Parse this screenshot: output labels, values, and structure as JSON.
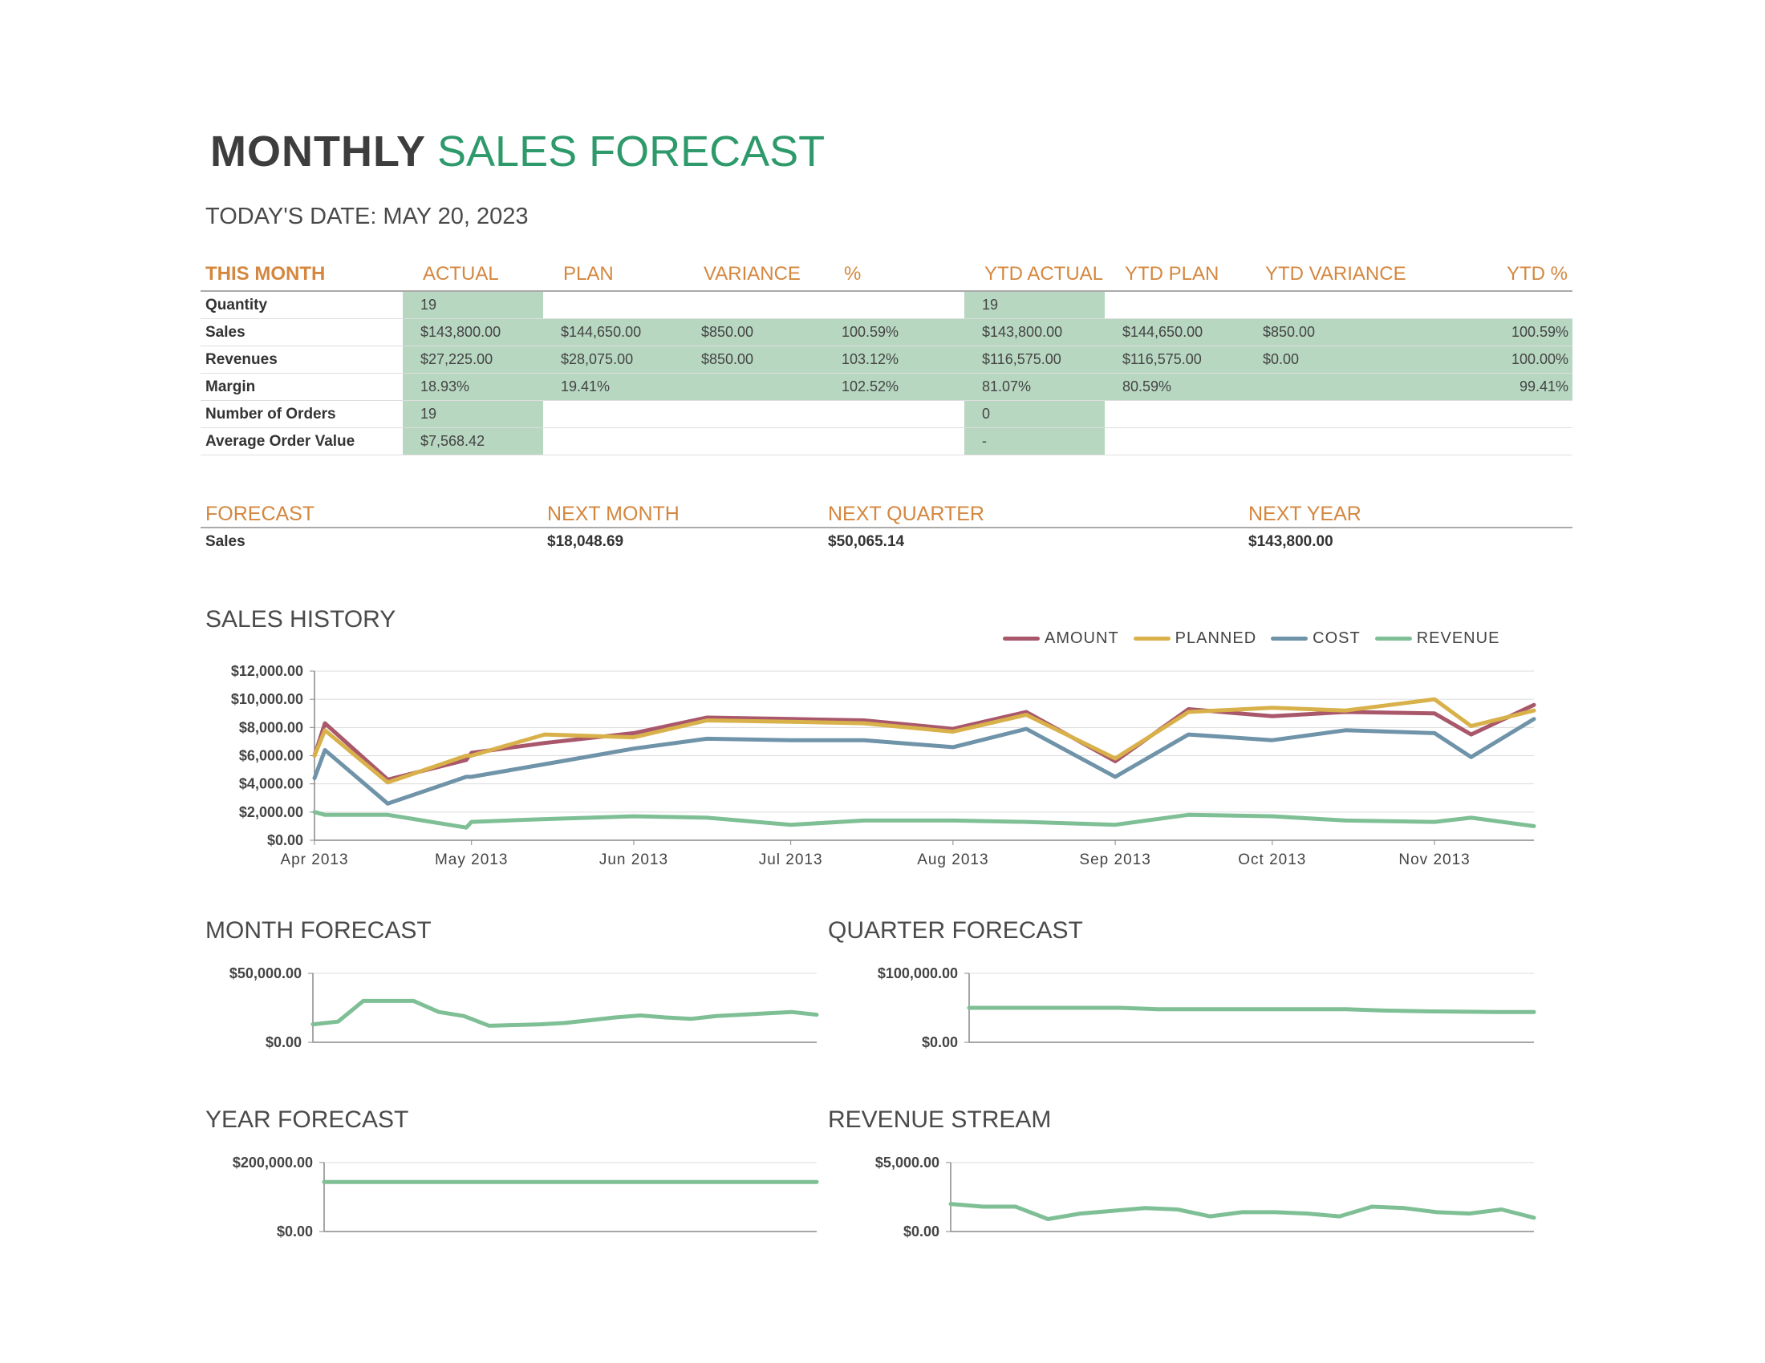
{
  "title": {
    "bold": "MONTHLY",
    "rest": "SALES FORECAST"
  },
  "date": {
    "label": "TODAY'S DATE:",
    "value": "MAY 20, 2023"
  },
  "this_month": {
    "headers": [
      "THIS MONTH",
      "ACTUAL",
      "PLAN",
      "VARIANCE",
      "%",
      "YTD ACTUAL",
      "YTD PLAN",
      "YTD VARIANCE",
      "YTD %"
    ],
    "rows": [
      {
        "label": "Quantity",
        "actual": "19",
        "plan": "",
        "variance": "",
        "pct": "",
        "ytd_actual": "19",
        "ytd_plan": "",
        "ytd_variance": "",
        "ytd_pct": ""
      },
      {
        "label": "Sales",
        "actual": "$143,800.00",
        "plan": "$144,650.00",
        "variance": "$850.00",
        "pct": "100.59%",
        "ytd_actual": "$143,800.00",
        "ytd_plan": "$144,650.00",
        "ytd_variance": "$850.00",
        "ytd_pct": "100.59%"
      },
      {
        "label": "Revenues",
        "actual": "$27,225.00",
        "plan": "$28,075.00",
        "variance": "$850.00",
        "pct": "103.12%",
        "ytd_actual": "$116,575.00",
        "ytd_plan": "$116,575.00",
        "ytd_variance": "$0.00",
        "ytd_pct": "100.00%"
      },
      {
        "label": "Margin",
        "actual": "18.93%",
        "plan": "19.41%",
        "variance": "",
        "pct": "102.52%",
        "ytd_actual": "81.07%",
        "ytd_plan": "80.59%",
        "ytd_variance": "",
        "ytd_pct": "99.41%"
      },
      {
        "label": "Number of Orders",
        "actual": "19",
        "plan": "",
        "variance": "",
        "pct": "",
        "ytd_actual": "0",
        "ytd_plan": "",
        "ytd_variance": "",
        "ytd_pct": ""
      },
      {
        "label": "Average Order Value",
        "actual": "$7,568.42",
        "plan": "",
        "variance": "",
        "pct": "",
        "ytd_actual": "-",
        "ytd_plan": "",
        "ytd_variance": "",
        "ytd_pct": ""
      }
    ]
  },
  "forecast": {
    "headers": [
      "FORECAST",
      "NEXT MONTH",
      "NEXT QUARTER",
      "NEXT YEAR"
    ],
    "row": {
      "label": "Sales",
      "next_month": "$18,048.69",
      "next_quarter": "$50,065.14",
      "next_year": "$143,800.00"
    }
  },
  "sections": {
    "sales_history": "SALES HISTORY",
    "month_forecast": "MONTH FORECAST",
    "quarter_forecast": "QUARTER FORECAST",
    "year_forecast": "YEAR FORECAST",
    "revenue_stream": "REVENUE STREAM"
  },
  "colors": {
    "amount": "#a9576b",
    "planned": "#d9b14a",
    "cost": "#6f93a8",
    "revenue": "#7fbf96",
    "accent_orange": "#d4873f",
    "accent_green": "#2e9a6b",
    "cell_green": "#b7d7c1"
  },
  "chart_data": [
    {
      "id": "sales_history",
      "type": "line",
      "title": "SALES HISTORY",
      "x": [
        "2013-04-01",
        "2013-04-03",
        "2013-04-15",
        "2013-04-30",
        "2013-05-01",
        "2013-05-15",
        "2013-06-01",
        "2013-06-15",
        "2013-07-01",
        "2013-07-15",
        "2013-08-01",
        "2013-08-15",
        "2013-09-01",
        "2013-09-15",
        "2013-10-01",
        "2013-10-15",
        "2013-11-01",
        "2013-11-08",
        "2013-11-20"
      ],
      "x_tick_labels": [
        "Apr 2013",
        "May 2013",
        "Jun 2013",
        "Jul 2013",
        "Aug 2013",
        "Sep 2013",
        "Oct 2013",
        "Nov 2013"
      ],
      "x_tick_dates": [
        "2013-04-01",
        "2013-05-01",
        "2013-06-01",
        "2013-07-01",
        "2013-08-01",
        "2013-09-01",
        "2013-10-01",
        "2013-11-01"
      ],
      "x_range": [
        "2013-04-01",
        "2013-11-20"
      ],
      "y_ticks": [
        "$0.00",
        "$2,000.00",
        "$4,000.00",
        "$6,000.00",
        "$8,000.00",
        "$10,000.00",
        "$12,000.00"
      ],
      "ylim": [
        0,
        12000
      ],
      "legend": "top-right",
      "series": [
        {
          "name": "AMOUNT",
          "color": "#a9576b",
          "values": [
            6000,
            8300,
            4300,
            5700,
            6200,
            6900,
            7600,
            8700,
            8600,
            8500,
            7900,
            9100,
            5600,
            9300,
            8800,
            9100,
            9000,
            7500,
            9600
          ]
        },
        {
          "name": "PLANNED",
          "color": "#d9b14a",
          "values": [
            6000,
            7800,
            4100,
            6000,
            6000,
            7500,
            7300,
            8500,
            8400,
            8300,
            7700,
            8900,
            5800,
            9100,
            9400,
            9200,
            10000,
            8100,
            9200
          ]
        },
        {
          "name": "COST",
          "color": "#6f93a8",
          "values": [
            4400,
            6400,
            2600,
            4500,
            4500,
            5400,
            6500,
            7200,
            7100,
            7100,
            6600,
            7900,
            4500,
            7500,
            7100,
            7800,
            7600,
            5900,
            8600
          ]
        },
        {
          "name": "REVENUE",
          "color": "#7fbf96",
          "values": [
            2000,
            1800,
            1800,
            900,
            1300,
            1500,
            1700,
            1600,
            1100,
            1400,
            1400,
            1300,
            1100,
            1800,
            1700,
            1400,
            1300,
            1600,
            1000
          ]
        }
      ]
    },
    {
      "id": "month_forecast",
      "type": "line",
      "title": "MONTH FORECAST",
      "y_ticks": [
        "$0.00",
        "$50,000.00"
      ],
      "ylim": [
        0,
        50000
      ],
      "series": [
        {
          "name": "",
          "color": "#7fbf96",
          "values": [
            13000,
            15000,
            30000,
            30000,
            30000,
            22000,
            19000,
            12000,
            12500,
            13000,
            14000,
            16000,
            18000,
            19500,
            18000,
            17000,
            19000,
            20000,
            21000,
            22000,
            20000
          ]
        }
      ]
    },
    {
      "id": "quarter_forecast",
      "type": "line",
      "title": "QUARTER FORECAST",
      "y_ticks": [
        "$0.00",
        "$100,000.00"
      ],
      "ylim": [
        0,
        100000
      ],
      "series": [
        {
          "name": "",
          "color": "#7fbf96",
          "values": [
            50000,
            50000,
            50000,
            50000,
            50000,
            48000,
            48000,
            48000,
            48000,
            48000,
            48000,
            46000,
            45000,
            44500,
            44000,
            44000
          ]
        }
      ]
    },
    {
      "id": "year_forecast",
      "type": "line",
      "title": "YEAR FORECAST",
      "y_ticks": [
        "$0.00",
        "$200,000.00"
      ],
      "ylim": [
        0,
        200000
      ],
      "series": [
        {
          "name": "",
          "color": "#7fbf96",
          "values": [
            143800,
            143800,
            143800,
            143800,
            143800,
            143800,
            143800,
            143800,
            143800,
            143800
          ]
        }
      ]
    },
    {
      "id": "revenue_stream",
      "type": "line",
      "title": "REVENUE STREAM",
      "y_ticks": [
        "$0.00",
        "$5,000.00"
      ],
      "ylim": [
        0,
        5000
      ],
      "series": [
        {
          "name": "",
          "color": "#7fbf96",
          "values": [
            2000,
            1800,
            1800,
            900,
            1300,
            1500,
            1700,
            1600,
            1100,
            1400,
            1400,
            1300,
            1100,
            1800,
            1700,
            1400,
            1300,
            1600,
            1000
          ]
        }
      ]
    }
  ]
}
